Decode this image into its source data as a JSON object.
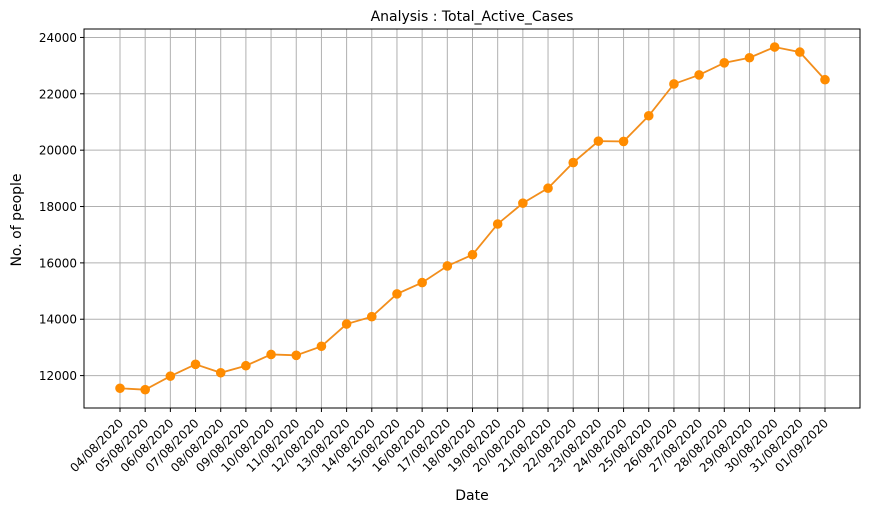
{
  "chart_data": {
    "type": "line",
    "title": "Analysis : Total_Active_Cases",
    "xlabel": "Date",
    "ylabel": "No. of people",
    "x": [
      "04/08/2020",
      "05/08/2020",
      "06/08/2020",
      "07/08/2020",
      "08/08/2020",
      "09/08/2020",
      "10/08/2020",
      "11/08/2020",
      "12/08/2020",
      "13/08/2020",
      "14/08/2020",
      "15/08/2020",
      "16/08/2020",
      "17/08/2020",
      "18/08/2020",
      "19/08/2020",
      "20/08/2020",
      "21/08/2020",
      "22/08/2020",
      "23/08/2020",
      "24/08/2020",
      "25/08/2020",
      "26/08/2020",
      "27/08/2020",
      "28/08/2020",
      "29/08/2020",
      "30/08/2020",
      "31/08/2020",
      "01/09/2020"
    ],
    "series": [
      {
        "values": [
          11550,
          11500,
          11980,
          12400,
          12100,
          12350,
          12750,
          12720,
          13040,
          13830,
          14090,
          14900,
          15300,
          15890,
          16290,
          17380,
          18120,
          18650,
          19560,
          20320,
          20310,
          21220,
          22350,
          22670,
          23100,
          23280,
          23660,
          23480,
          22500
        ]
      }
    ],
    "yticks": [
      12000,
      14000,
      16000,
      18000,
      20000,
      22000,
      24000
    ],
    "ylim": [
      10850,
      24300
    ],
    "grid": true,
    "line_color": "#f28e1c",
    "marker_color": "#ff8c00"
  }
}
